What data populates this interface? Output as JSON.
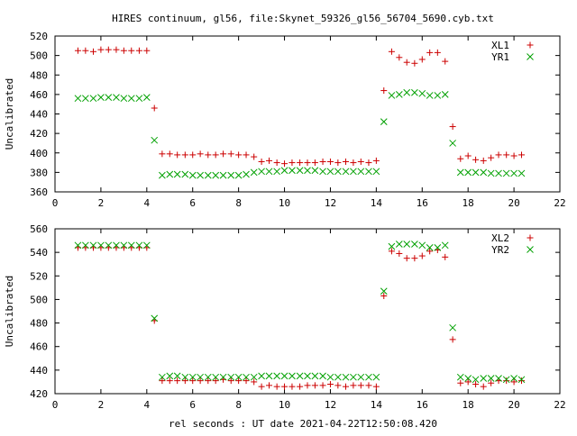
{
  "title": "HIRES continuum, gl56, file:Skynet_59326_gl56_56704_5690.cyb.txt",
  "xlabel": "rel seconds : UT date 2021-04-22T12:50:08.420",
  "chart_data": [
    {
      "type": "scatter",
      "ylabel": "Uncalibrated",
      "xlim": [
        0,
        22
      ],
      "ylim": [
        360,
        520
      ],
      "xticks": [
        0,
        2,
        4,
        6,
        8,
        10,
        12,
        14,
        16,
        18,
        20,
        22
      ],
      "yticks": [
        360,
        380,
        400,
        420,
        440,
        460,
        480,
        500,
        520
      ],
      "legend": "top-right",
      "series": [
        {
          "name": "XL1",
          "marker": "plus",
          "color": "#cc0000",
          "x": [
            1.0,
            1.33,
            1.67,
            2.0,
            2.33,
            2.67,
            3.0,
            3.33,
            3.67,
            4.0,
            4.33,
            4.67,
            5.0,
            5.33,
            5.67,
            6.0,
            6.33,
            6.67,
            7.0,
            7.33,
            7.67,
            8.0,
            8.33,
            8.67,
            9.0,
            9.33,
            9.67,
            10.0,
            10.33,
            10.67,
            11.0,
            11.33,
            11.67,
            12.0,
            12.33,
            12.67,
            13.0,
            13.33,
            13.67,
            14.0,
            14.33,
            14.67,
            15.0,
            15.33,
            15.67,
            16.0,
            16.33,
            16.67,
            17.0,
            17.33,
            17.67,
            18.0,
            18.33,
            18.67,
            19.0,
            19.33,
            19.67,
            20.0,
            20.33
          ],
          "y": [
            505,
            505,
            504,
            506,
            506,
            506,
            505,
            505,
            505,
            505,
            446,
            399,
            399,
            398,
            398,
            398,
            399,
            398,
            398,
            399,
            399,
            398,
            398,
            396,
            391,
            392,
            390,
            389,
            390,
            390,
            390,
            390,
            391,
            391,
            390,
            391,
            390,
            391,
            390,
            392,
            464,
            504,
            498,
            493,
            492,
            496,
            503,
            503,
            494,
            427,
            394,
            397,
            393,
            392,
            395,
            398,
            398,
            397,
            398
          ]
        },
        {
          "name": "YR1",
          "marker": "cross",
          "color": "#00a000",
          "x": [
            1.0,
            1.33,
            1.67,
            2.0,
            2.33,
            2.67,
            3.0,
            3.33,
            3.67,
            4.0,
            4.33,
            4.67,
            5.0,
            5.33,
            5.67,
            6.0,
            6.33,
            6.67,
            7.0,
            7.33,
            7.67,
            8.0,
            8.33,
            8.67,
            9.0,
            9.33,
            9.67,
            10.0,
            10.33,
            10.67,
            11.0,
            11.33,
            11.67,
            12.0,
            12.33,
            12.67,
            13.0,
            13.33,
            13.67,
            14.0,
            14.33,
            14.67,
            15.0,
            15.33,
            15.67,
            16.0,
            16.33,
            16.67,
            17.0,
            17.33,
            17.67,
            18.0,
            18.33,
            18.67,
            19.0,
            19.33,
            19.67,
            20.0,
            20.33
          ],
          "y": [
            456,
            456,
            456,
            457,
            457,
            457,
            456,
            456,
            456,
            457,
            413,
            377,
            378,
            378,
            378,
            377,
            377,
            377,
            377,
            377,
            377,
            377,
            378,
            380,
            381,
            381,
            381,
            382,
            382,
            382,
            382,
            382,
            381,
            381,
            381,
            381,
            381,
            381,
            381,
            381,
            432,
            459,
            460,
            462,
            462,
            461,
            459,
            459,
            460,
            410,
            380,
            380,
            380,
            380,
            379,
            379,
            379,
            379,
            379
          ]
        }
      ]
    },
    {
      "type": "scatter",
      "ylabel": "Uncalibrated",
      "xlim": [
        0,
        22
      ],
      "ylim": [
        420,
        560
      ],
      "xticks": [
        0,
        2,
        4,
        6,
        8,
        10,
        12,
        14,
        16,
        18,
        20,
        22
      ],
      "yticks": [
        420,
        440,
        460,
        480,
        500,
        520,
        540,
        560
      ],
      "legend": "top-right",
      "series": [
        {
          "name": "XL2",
          "marker": "plus",
          "color": "#cc0000",
          "x": [
            1.0,
            1.33,
            1.67,
            2.0,
            2.33,
            2.67,
            3.0,
            3.33,
            3.67,
            4.0,
            4.33,
            4.67,
            5.0,
            5.33,
            5.67,
            6.0,
            6.33,
            6.67,
            7.0,
            7.33,
            7.67,
            8.0,
            8.33,
            8.67,
            9.0,
            9.33,
            9.67,
            10.0,
            10.33,
            10.67,
            11.0,
            11.33,
            11.67,
            12.0,
            12.33,
            12.67,
            13.0,
            13.33,
            13.67,
            14.0,
            14.33,
            14.67,
            15.0,
            15.33,
            15.67,
            16.0,
            16.33,
            16.67,
            17.0,
            17.33,
            17.67,
            18.0,
            18.33,
            18.67,
            19.0,
            19.33,
            19.67,
            20.0,
            20.33
          ],
          "y": [
            544,
            544,
            544,
            544,
            544,
            544,
            544,
            544,
            544,
            544,
            482,
            431,
            431,
            431,
            431,
            431,
            431,
            431,
            431,
            432,
            431,
            431,
            431,
            430,
            426,
            427,
            426,
            426,
            426,
            426,
            427,
            427,
            427,
            428,
            427,
            426,
            427,
            427,
            427,
            426,
            503,
            541,
            539,
            535,
            535,
            537,
            541,
            542,
            536,
            466,
            429,
            430,
            428,
            426,
            429,
            431,
            431,
            430,
            431
          ]
        },
        {
          "name": "YR2",
          "marker": "cross",
          "color": "#00a000",
          "x": [
            1.0,
            1.33,
            1.67,
            2.0,
            2.33,
            2.67,
            3.0,
            3.33,
            3.67,
            4.0,
            4.33,
            4.67,
            5.0,
            5.33,
            5.67,
            6.0,
            6.33,
            6.67,
            7.0,
            7.33,
            7.67,
            8.0,
            8.33,
            8.67,
            9.0,
            9.33,
            9.67,
            10.0,
            10.33,
            10.67,
            11.0,
            11.33,
            11.67,
            12.0,
            12.33,
            12.67,
            13.0,
            13.33,
            13.67,
            14.0,
            14.33,
            14.67,
            15.0,
            15.33,
            15.67,
            16.0,
            16.33,
            16.67,
            17.0,
            17.33,
            17.67,
            18.0,
            18.33,
            18.67,
            19.0,
            19.33,
            19.67,
            20.0,
            20.33
          ],
          "y": [
            546,
            546,
            546,
            546,
            546,
            546,
            546,
            546,
            546,
            546,
            484,
            434,
            435,
            435,
            434,
            434,
            434,
            434,
            434,
            434,
            434,
            434,
            434,
            434,
            435,
            435,
            435,
            435,
            435,
            435,
            435,
            435,
            435,
            434,
            434,
            434,
            434,
            434,
            434,
            434,
            507,
            545,
            547,
            547,
            547,
            546,
            544,
            544,
            546,
            476,
            434,
            433,
            432,
            433,
            433,
            433,
            432,
            433,
            432
          ]
        }
      ]
    }
  ]
}
